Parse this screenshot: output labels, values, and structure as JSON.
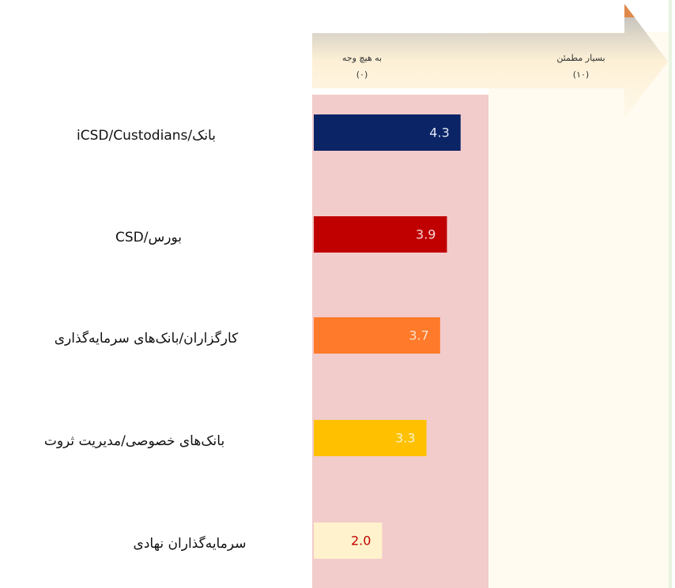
{
  "chart_data": {
    "type": "hbar",
    "categories": [
      "بانک/iCSD/Custodians",
      "بورس/CSD",
      "کارگزاران/بانک‌های سرمایه‌گذاری",
      "بانک‌های خصوصی/مدیریت ثروت",
      "سرمایه‌گذاران نهادی"
    ],
    "values": [
      4.3,
      3.9,
      3.7,
      3.3,
      2.0
    ],
    "value_labels": [
      "4.3",
      "3.9",
      "3.7",
      "3.3",
      "2.0"
    ],
    "colors": [
      "#0b2466",
      "#c00000",
      "#ff7a2a",
      "#ffc000",
      "#fff2cc"
    ],
    "label_colors": [
      "#dfe6f5",
      "#f6d6d6",
      "#ffe3cf",
      "#fff3c4",
      "#c00000"
    ],
    "xlim": [
      0,
      10
    ],
    "xticks": [
      {
        "value": 0,
        "label": "(۰)"
      },
      {
        "value": 10,
        "label": "(۱۰)"
      }
    ],
    "scale_labels": [
      "به هیچ وجه",
      "بسیار مطمئن"
    ],
    "highlight_xlim": [
      0,
      5.2
    ]
  }
}
